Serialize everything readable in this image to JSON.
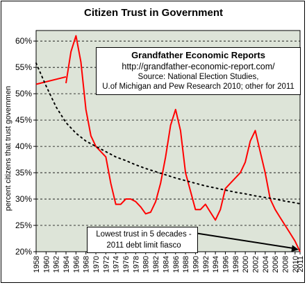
{
  "title": "Citizen Trust in Government",
  "source_box": {
    "line1": "Grandfather Economic Reports",
    "line2": "http://grandfather-economic-report.com/",
    "line3": "Source: National Election Studies,",
    "line4": "U.of Michigan and Pew Research 2010; other for 2011"
  },
  "annotation": {
    "line1": "Lowest trust in 5 decades -",
    "line2": "2011 debt limit fiasco"
  },
  "colors": {
    "plot_bg": "#dde4d8",
    "series": "#ff0000",
    "trend": "#000000",
    "grid": "#000000"
  },
  "chart_data": {
    "type": "line",
    "title": "Citizen Trust in Government",
    "xlabel": "",
    "ylabel": "percent citizens that trust governmen",
    "ylim": [
      20,
      62
    ],
    "yticks": [
      20,
      25,
      30,
      35,
      40,
      45,
      50,
      55,
      60
    ],
    "ytick_labels": [
      "20%",
      "25%",
      "30%",
      "35%",
      "40%",
      "45%",
      "50%",
      "55%",
      "60%"
    ],
    "xlim": [
      1958,
      2011
    ],
    "xtick_labels": [
      "1958",
      "1960",
      "1962",
      "1964",
      "1966",
      "1968",
      "1970",
      "1972",
      "1974",
      "1976",
      "1978",
      "1980",
      "1982",
      "1984",
      "1986",
      "1988",
      "1990",
      "1992",
      "1994",
      "1996",
      "1998",
      "2000",
      "2002",
      "2004",
      "2006",
      "2008",
      "2010",
      "2011"
    ],
    "grid": "horizontal dashed",
    "series": [
      {
        "style": "solid",
        "segments": [
          [
            [
              1958,
              51.8
            ],
            [
              1964,
              53.2
            ]
          ],
          [
            [
              1964,
              52
            ],
            [
              1965,
              58
            ],
            [
              1966,
              61
            ],
            [
              1967,
              56
            ],
            [
              1968,
              47
            ],
            [
              1969,
              42
            ],
            [
              1970,
              40
            ],
            [
              1971,
              39
            ],
            [
              1972,
              38
            ],
            [
              1973,
              33
            ],
            [
              1974,
              29
            ],
            [
              1975,
              29
            ],
            [
              1976,
              30
            ],
            [
              1977,
              30
            ],
            [
              1978,
              29.5
            ],
            [
              1979,
              28.5
            ],
            [
              1980,
              27.2
            ],
            [
              1981,
              27.5
            ],
            [
              1982,
              29.5
            ],
            [
              1983,
              33
            ],
            [
              1984,
              38
            ],
            [
              1985,
              44
            ],
            [
              1986,
              47
            ],
            [
              1987,
              43
            ],
            [
              1988,
              35
            ],
            [
              1989,
              31.5
            ],
            [
              1990,
              28
            ],
            [
              1991,
              28
            ],
            [
              1992,
              29
            ],
            [
              1993,
              27.5
            ],
            [
              1994,
              26
            ],
            [
              1995,
              28
            ],
            [
              1996,
              32
            ],
            [
              1997,
              33
            ],
            [
              1998,
              34
            ],
            [
              1999,
              35
            ],
            [
              2000,
              37
            ],
            [
              2001,
              41
            ],
            [
              2002,
              43
            ],
            [
              2003,
              39
            ],
            [
              2004,
              35
            ],
            [
              2005,
              30
            ],
            [
              2006,
              28
            ],
            [
              2007,
              26.5
            ],
            [
              2008,
              25
            ],
            [
              2009,
              23.5
            ],
            [
              2010,
              22
            ],
            [
              2011,
              20
            ]
          ]
        ]
      },
      {
        "style": "dotted",
        "points": [
          [
            1958,
            55.8
          ],
          [
            1960,
            51.5
          ],
          [
            1962,
            47.5
          ],
          [
            1964,
            44.5
          ],
          [
            1966,
            42.5
          ],
          [
            1968,
            41
          ],
          [
            1970,
            40
          ],
          [
            1972,
            39
          ],
          [
            1974,
            38
          ],
          [
            1976,
            37.3
          ],
          [
            1978,
            36.5
          ],
          [
            1980,
            35.8
          ],
          [
            1982,
            35.2
          ],
          [
            1984,
            34.6
          ],
          [
            1986,
            34
          ],
          [
            1988,
            33.5
          ],
          [
            1990,
            33
          ],
          [
            1992,
            32.5
          ],
          [
            1994,
            32.1
          ],
          [
            1996,
            31.7
          ],
          [
            1998,
            31.3
          ],
          [
            2000,
            31
          ],
          [
            2002,
            30.6
          ],
          [
            2004,
            30.3
          ],
          [
            2006,
            30
          ],
          [
            2008,
            29.6
          ],
          [
            2010,
            29.3
          ],
          [
            2011,
            29.1
          ]
        ]
      }
    ],
    "annotation_arrow": {
      "from": [
        1996,
        23.5
      ],
      "to": [
        2011,
        20.4
      ]
    }
  }
}
